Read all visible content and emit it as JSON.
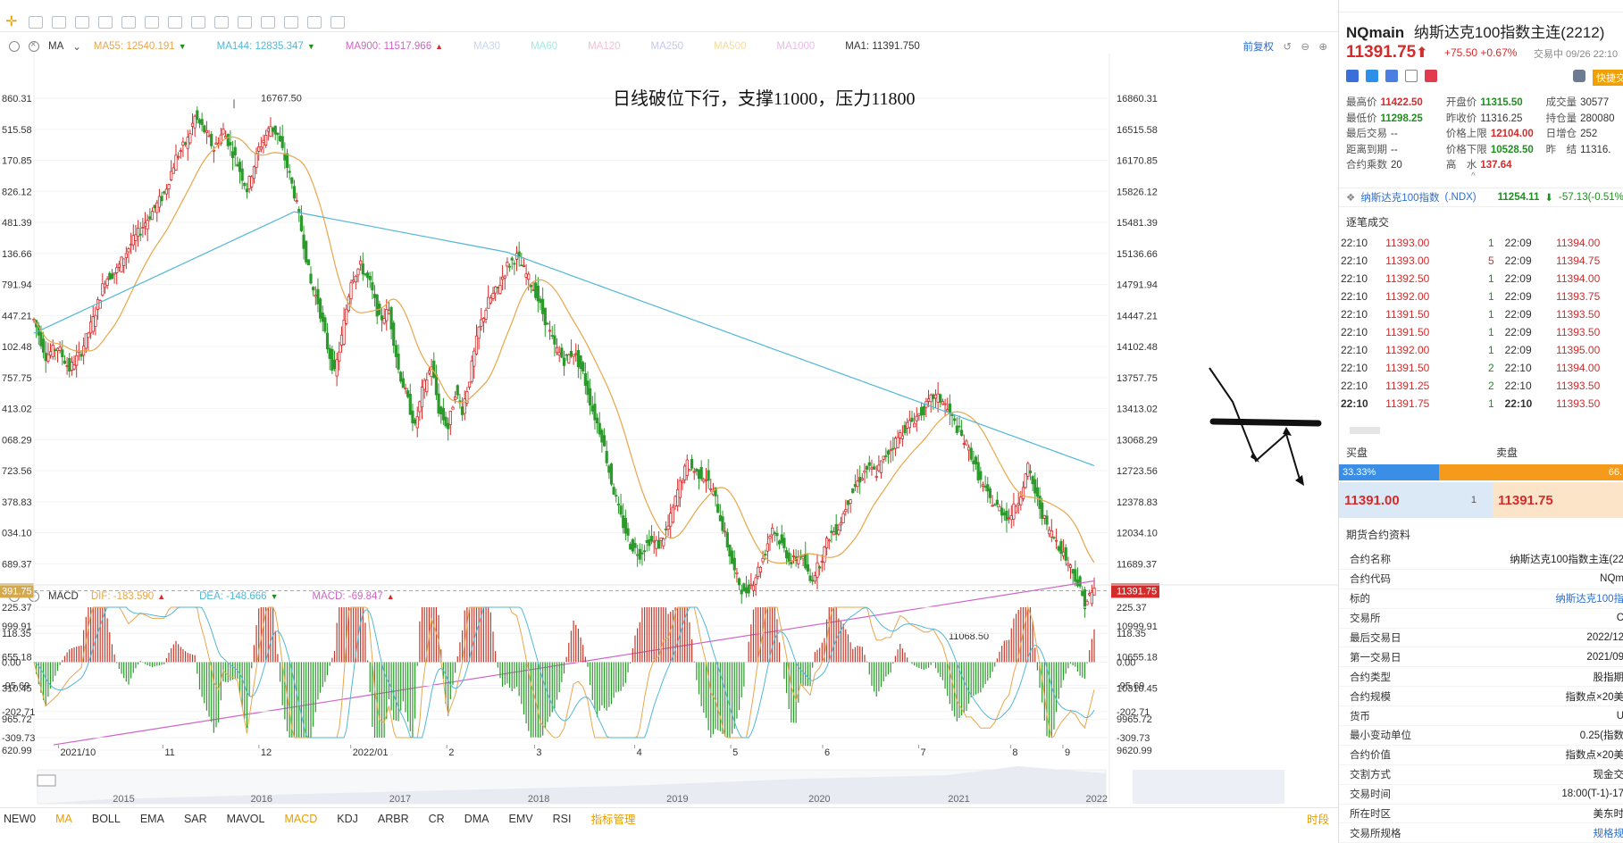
{
  "chart_data": {
    "type": "candlestick",
    "symbol": "NQmain",
    "price_axis": {
      "left_ticks": [
        "860.31",
        "515.58",
        "170.85",
        "826.12",
        "481.39",
        "136.66",
        "791.94",
        "447.21",
        "102.48",
        "757.75",
        "413.02",
        "068.29",
        "723.56",
        "378.83",
        "034.10",
        "689.37",
        "391.75",
        "999.91",
        "655.18",
        "310.45",
        "965.72",
        "620.99"
      ],
      "right_ticks": [
        "16860.31",
        "16515.58",
        "16170.85",
        "15826.12",
        "15481.39",
        "15136.66",
        "14791.94",
        "14447.21",
        "14102.48",
        "13757.75",
        "13413.02",
        "13068.29",
        "12723.56",
        "12378.83",
        "12034.10",
        "11689.37",
        "11391.75",
        "10999.91",
        "10655.18",
        "10310.45",
        "9965.72",
        "9620.99"
      ],
      "ylim": [
        9620.99,
        16860.31
      ],
      "current_price": 11391.75
    },
    "macd_axis": {
      "ticks": [
        "225.37",
        "118.35",
        "0.00",
        "-95.69",
        "-202.71",
        "-309.73"
      ],
      "ylim": [
        -309.73,
        225.37
      ]
    },
    "x_labels": [
      "2021/10",
      "11",
      "12",
      "2022/01",
      "2",
      "3",
      "4",
      "5",
      "6",
      "7",
      "8",
      "9"
    ],
    "overview_labels": [
      "2015",
      "2016",
      "2017",
      "2018",
      "2019",
      "2020",
      "2021",
      "2022"
    ],
    "annotations": {
      "high_label": "16767.50",
      "low_label": "11068.50",
      "note": "日线破位下行，支撑11000，压力11800"
    },
    "close_path": [
      [
        0,
        14400
      ],
      [
        5,
        14000
      ],
      [
        10,
        14100
      ],
      [
        15,
        13850
      ],
      [
        20,
        14050
      ],
      [
        25,
        14400
      ],
      [
        30,
        14850
      ],
      [
        35,
        14950
      ],
      [
        40,
        15200
      ],
      [
        45,
        15400
      ],
      [
        50,
        15600
      ],
      [
        55,
        15800
      ],
      [
        60,
        16200
      ],
      [
        65,
        16400
      ],
      [
        68,
        16650
      ],
      [
        72,
        16500
      ],
      [
        76,
        16300
      ],
      [
        80,
        16500
      ],
      [
        85,
        16200
      ],
      [
        90,
        15850
      ],
      [
        95,
        16300
      ],
      [
        100,
        16550
      ],
      [
        103,
        16450
      ],
      [
        107,
        16100
      ],
      [
        110,
        15800
      ],
      [
        113,
        15400
      ],
      [
        117,
        14800
      ],
      [
        120,
        14600
      ],
      [
        124,
        14100
      ],
      [
        127,
        13800
      ],
      [
        130,
        14200
      ],
      [
        134,
        14850
      ],
      [
        138,
        15000
      ],
      [
        142,
        14800
      ],
      [
        146,
        14400
      ],
      [
        150,
        14500
      ],
      [
        154,
        13850
      ],
      [
        158,
        13500
      ],
      [
        161,
        13200
      ],
      [
        164,
        13600
      ],
      [
        168,
        13900
      ],
      [
        171,
        13400
      ],
      [
        175,
        13200
      ],
      [
        178,
        13600
      ],
      [
        181,
        13400
      ],
      [
        184,
        13750
      ],
      [
        188,
        14300
      ],
      [
        192,
        14600
      ],
      [
        196,
        14750
      ],
      [
        200,
        15000
      ],
      [
        204,
        15100
      ],
      [
        208,
        14900
      ],
      [
        212,
        14700
      ],
      [
        216,
        14400
      ],
      [
        220,
        14100
      ],
      [
        224,
        13950
      ],
      [
        228,
        14050
      ],
      [
        232,
        13800
      ],
      [
        236,
        13400
      ],
      [
        240,
        13100
      ],
      [
        244,
        12600
      ],
      [
        248,
        12200
      ],
      [
        252,
        11900
      ],
      [
        256,
        11800
      ],
      [
        260,
        11950
      ],
      [
        264,
        11900
      ],
      [
        268,
        12100
      ],
      [
        272,
        12500
      ],
      [
        276,
        12800
      ],
      [
        280,
        12700
      ],
      [
        284,
        12650
      ],
      [
        288,
        12400
      ],
      [
        292,
        12000
      ],
      [
        296,
        11600
      ],
      [
        300,
        11350
      ],
      [
        304,
        11500
      ],
      [
        308,
        11750
      ],
      [
        312,
        12100
      ],
      [
        316,
        11900
      ],
      [
        320,
        11700
      ],
      [
        324,
        11800
      ],
      [
        328,
        11500
      ],
      [
        332,
        11700
      ],
      [
        336,
        12000
      ],
      [
        340,
        12100
      ],
      [
        344,
        12400
      ],
      [
        348,
        12600
      ],
      [
        352,
        12750
      ],
      [
        356,
        12700
      ],
      [
        360,
        12900
      ],
      [
        364,
        13050
      ],
      [
        368,
        13200
      ],
      [
        372,
        13300
      ],
      [
        376,
        13400
      ],
      [
        380,
        13550
      ],
      [
        384,
        13500
      ],
      [
        388,
        13300
      ],
      [
        392,
        13100
      ],
      [
        396,
        12900
      ],
      [
        400,
        12600
      ],
      [
        404,
        12400
      ],
      [
        408,
        12300
      ],
      [
        412,
        12200
      ],
      [
        416,
        12400
      ],
      [
        420,
        12750
      ],
      [
        424,
        12400
      ],
      [
        428,
        12100
      ],
      [
        432,
        11950
      ],
      [
        436,
        11750
      ],
      [
        440,
        11550
      ],
      [
        444,
        11250
      ],
      [
        448,
        11400
      ]
    ],
    "ma_lines": [
      {
        "name": "MA55",
        "value": "12540.191",
        "dir": "▼",
        "color": "#e8a64c"
      },
      {
        "name": "MA144",
        "value": "12835.347",
        "dir": "▼",
        "color": "#52b7d6"
      },
      {
        "name": "MA900",
        "value": "11517.966",
        "dir": "▲",
        "color": "#cf63c8"
      },
      {
        "name": "MA30",
        "value": "",
        "dir": "",
        "color": "#c9d4ee"
      },
      {
        "name": "MA60",
        "value": "",
        "dir": "",
        "color": "#a8e8e0"
      },
      {
        "name": "MA120",
        "value": "",
        "dir": "",
        "color": "#f2c2d4"
      },
      {
        "name": "MA250",
        "value": "",
        "dir": "",
        "color": "#c4c8f0"
      },
      {
        "name": "MA500",
        "value": "",
        "dir": "",
        "color": "#f6dc9a"
      },
      {
        "name": "MA1000",
        "value": "",
        "dir": "",
        "color": "#e8bce8"
      },
      {
        "name": "MA1",
        "value": "11391.750",
        "dir": "",
        "color": "#333333"
      }
    ],
    "macd_lines": [
      {
        "name": "DIF",
        "value": "-183.590",
        "dir": "▲",
        "color": "#e8a64c"
      },
      {
        "name": "DEA",
        "value": "-148.666",
        "dir": "▼",
        "color": "#52b7d6"
      },
      {
        "name": "MACD",
        "value": "-69.847",
        "dir": "▲",
        "color": "#cf63c8"
      }
    ]
  },
  "indicator_bar": {
    "name": "MA",
    "adjust": "前复权"
  },
  "macd_bar": {
    "name": "MACD"
  },
  "bottom_tabs": [
    "NEW0",
    "MA",
    "BOLL",
    "EMA",
    "SAR",
    "MAVOL",
    "MACD",
    "KDJ",
    "ARBR",
    "CR",
    "DMA",
    "EMV",
    "RSI",
    "指标管理"
  ],
  "bottom_period": "时段",
  "panel": {
    "symbol": "NQmain",
    "name": "纳斯达克100指数主连(2212)",
    "price": "11391.75",
    "arrow": "⬆",
    "change": "+75.50",
    "change_pct": "+0.67%",
    "status": "交易中 09/26 22:10",
    "quick": "快捷交",
    "stats": [
      [
        [
          "最高价",
          "11422.50",
          "up"
        ],
        [
          "开盘价",
          "11315.50",
          "dn"
        ],
        [
          "成交量",
          "30577",
          ""
        ]
      ],
      [
        [
          "最低价",
          "11298.25",
          "dn"
        ],
        [
          "昨收价",
          "11316.25",
          ""
        ],
        [
          "持仓量",
          "280080",
          ""
        ]
      ],
      [
        [
          "最后交易",
          "--",
          ""
        ],
        [
          "价格上限",
          "12104.00",
          "up"
        ],
        [
          "日增仓",
          "252",
          ""
        ]
      ],
      [
        [
          "距离到期",
          "--",
          ""
        ],
        [
          "价格下限",
          "10528.50",
          "dn"
        ],
        [
          "昨　结",
          "11316.",
          ""
        ]
      ],
      [
        [
          "合约乘数",
          "20",
          ""
        ],
        [
          "高　水",
          "137.64",
          "up"
        ],
        [
          "",
          "",
          ""
        ]
      ]
    ],
    "index": {
      "name": "纳斯达克100指数",
      "code": "(.NDX)",
      "price": "11254.11",
      "arrow": "⬇",
      "chg": "-57.13(-0.51%"
    },
    "ticks_title": "逐笔成交",
    "ticks": [
      [
        "22:10",
        "11393.00",
        "1",
        "22:09",
        "11394.00"
      ],
      [
        "22:10",
        "11393.00",
        "5",
        "22:09",
        "11394.75"
      ],
      [
        "22:10",
        "11392.50",
        "1",
        "22:09",
        "11394.00"
      ],
      [
        "22:10",
        "11392.00",
        "1",
        "22:09",
        "11393.75"
      ],
      [
        "22:10",
        "11391.50",
        "1",
        "22:09",
        "11393.50"
      ],
      [
        "22:10",
        "11391.50",
        "1",
        "22:09",
        "11393.50"
      ],
      [
        "22:10",
        "11392.00",
        "1",
        "22:09",
        "11395.00"
      ],
      [
        "22:10",
        "11391.50",
        "2",
        "22:10",
        "11394.00"
      ],
      [
        "22:10",
        "11391.25",
        "2",
        "22:10",
        "11393.50"
      ],
      [
        "22:10",
        "11391.75",
        "1",
        "22:10",
        "11393.50"
      ]
    ],
    "buy_label": "买盘",
    "sell_label": "卖盘",
    "buy_pct": "33.33%",
    "sell_pct": "66.",
    "bid_price": "11391.00",
    "bid_qty": "1",
    "ask_price": "11391.75",
    "info_title": "期货合约资料",
    "info": [
      [
        "合约名称",
        "纳斯达克100指数主连(22"
      ],
      [
        "合约代码",
        "NQm"
      ],
      [
        "标的",
        "纳斯达克100指"
      ],
      [
        "交易所",
        "C"
      ],
      [
        "最后交易日",
        "2022/12"
      ],
      [
        "第一交易日",
        "2021/09"
      ],
      [
        "合约类型",
        "股指期"
      ],
      [
        "合约规模",
        "指数点×20美"
      ],
      [
        "货币",
        "U"
      ],
      [
        "最小变动单位",
        "0.25(指数"
      ],
      [
        "合约价值",
        "指数点×20美"
      ],
      [
        "交割方式",
        "现金交"
      ],
      [
        "交易时间",
        "18:00(T-1)-17"
      ],
      [
        "所在时区",
        "美东时"
      ],
      [
        "交易所规格",
        "规格规"
      ]
    ]
  }
}
